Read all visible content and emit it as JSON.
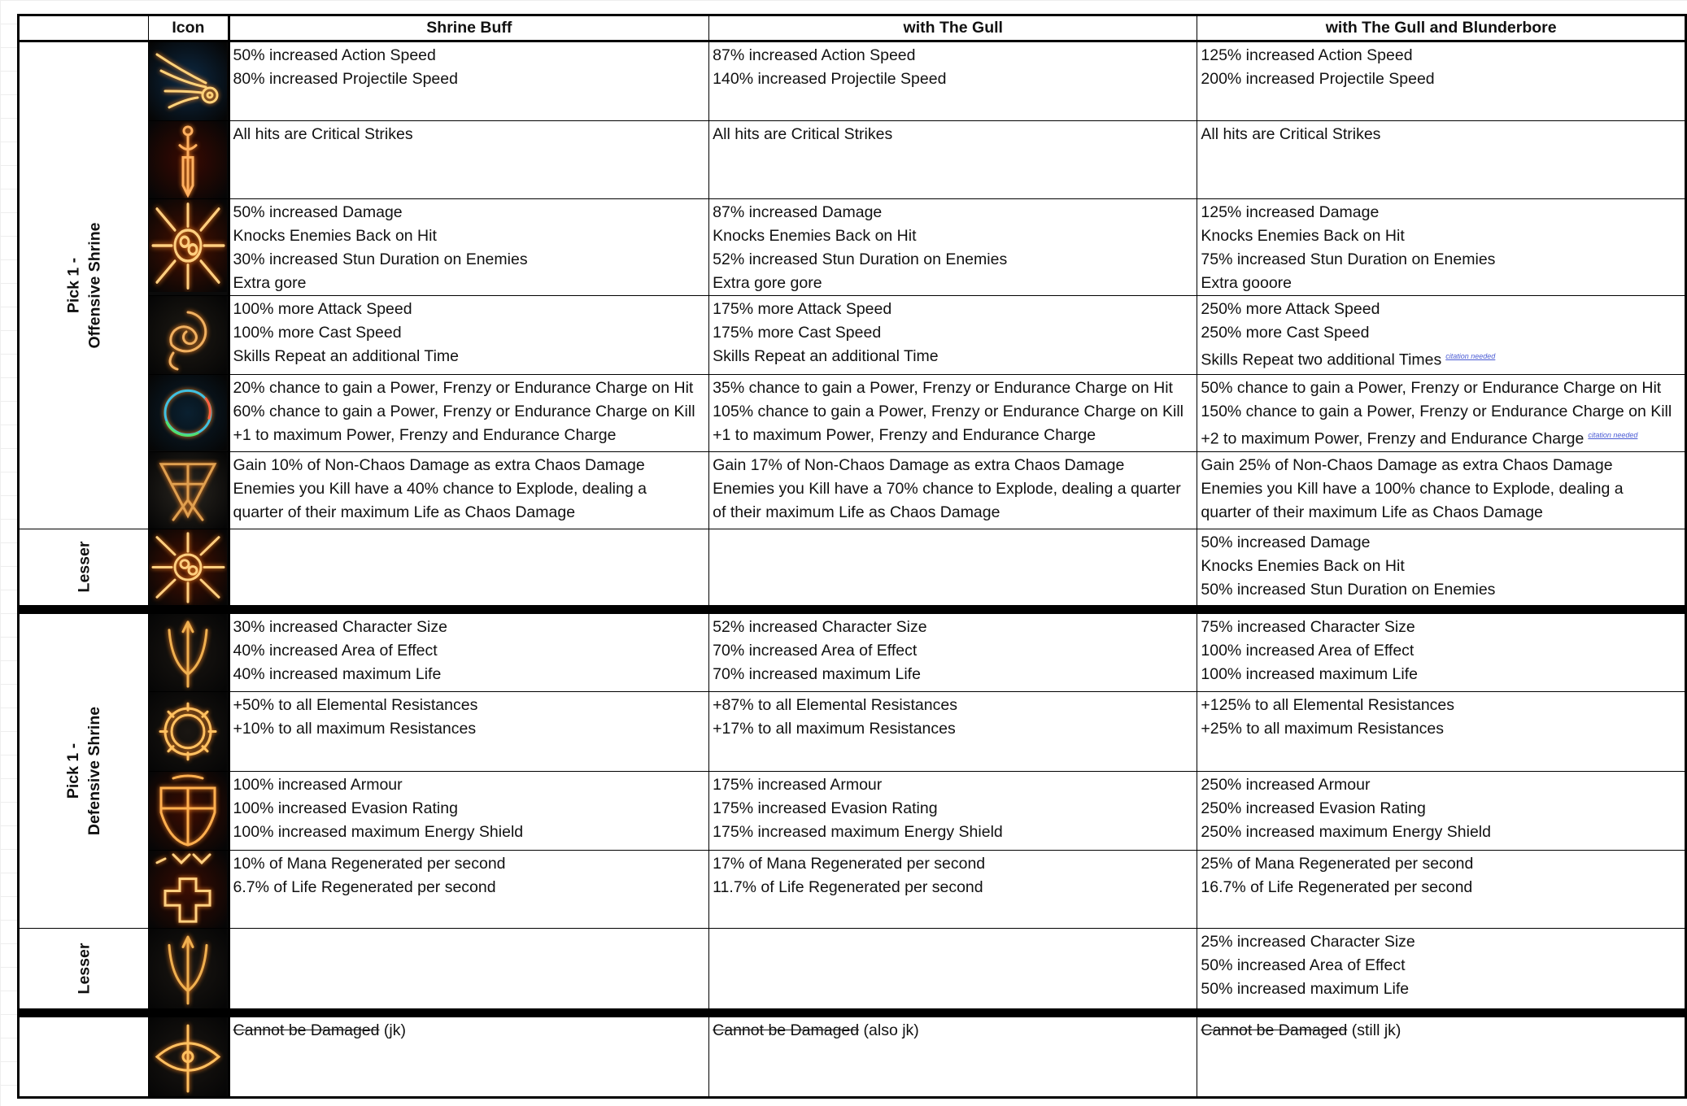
{
  "header": {
    "group": "",
    "icon": "Icon",
    "col1": "Shrine Buff",
    "col2": "with The Gull",
    "col3": "with The Gull and Blunderbore"
  },
  "groups": {
    "offensive": [
      "Pick 1 -",
      "Offensive Shrine"
    ],
    "lesser": "Lesser",
    "defensive": [
      "Pick 1 -",
      "Defensive Shrine"
    ]
  },
  "citation": "citation needed",
  "sections": [
    {
      "group": "offensive",
      "rows": [
        {
          "icon": "wing-shrine-icon",
          "bg": "#0d2a45",
          "glow": "#ffd27a",
          "h": 97,
          "cells": [
            {
              "lines": [
                "50% increased Action Speed",
                "80% increased Projectile Speed"
              ]
            },
            {
              "lines": [
                "87% increased Action Speed",
                "140% increased Projectile Speed"
              ]
            },
            {
              "lines": [
                "125% increased Action Speed",
                "200% increased Projectile Speed"
              ]
            }
          ]
        },
        {
          "icon": "dagger-shrine-icon",
          "bg": "#3a0a02",
          "glow": "#ffb060",
          "h": 96,
          "cells": [
            {
              "lines": [
                "All hits are Critical Strikes"
              ]
            },
            {
              "lines": [
                "All hits are Critical Strikes"
              ]
            },
            {
              "lines": [
                "All hits are Critical Strikes"
              ]
            }
          ]
        },
        {
          "icon": "burst-shrine-icon",
          "bg": "#4a1000",
          "glow": "#ffcf80",
          "h": 115,
          "cells": [
            {
              "lines": [
                "50% increased Damage",
                "Knocks Enemies Back on Hit",
                "30% increased Stun Duration on Enemies",
                "Extra gore"
              ]
            },
            {
              "lines": [
                "87% increased Damage",
                "Knocks Enemies Back on Hit",
                "52% increased Stun Duration on Enemies",
                "Extra gore gore"
              ]
            },
            {
              "lines": [
                "125% increased Damage",
                "Knocks Enemies Back on Hit",
                "75% increased Stun Duration on Enemies",
                "Extra gooore"
              ]
            }
          ]
        },
        {
          "icon": "spiral-shrine-icon",
          "bg": "#1e1a14",
          "glow": "#f0b060",
          "h": 97,
          "cells": [
            {
              "lines": [
                "100% more Attack Speed",
                "100% more Cast Speed",
                "Skills Repeat an additional Time"
              ]
            },
            {
              "lines": [
                "175% more Attack Speed",
                "175% more Cast Speed",
                "Skills Repeat an additional Time"
              ]
            },
            {
              "lines": [
                "250% more Attack Speed",
                "250% more Cast Speed",
                "Skills Repeat two additional Times"
              ],
              "cite_line": 2
            }
          ]
        },
        {
          "icon": "orb-charge-shrine-icon",
          "bg": "#0a2030",
          "glow": "#40d080",
          "h": 94,
          "cells": [
            {
              "lines": [
                "20% chance to gain a Power, Frenzy or Endurance Charge on Hit",
                "60% chance to gain a Power, Frenzy or Endurance Charge on Kill",
                "+1 to maximum Power, Frenzy and Endurance Charge"
              ]
            },
            {
              "lines": [
                "35% chance to gain a Power, Frenzy or Endurance Charge on Hit",
                "105% chance to gain a Power, Frenzy or Endurance Charge on Kill",
                "+1 to maximum Power, Frenzy and Endurance Charge"
              ]
            },
            {
              "lines": [
                "50% chance to gain a Power, Frenzy or Endurance Charge on Hit",
                "150% chance to gain a Power, Frenzy or Endurance Charge on Kill",
                "+2 to maximum Power, Frenzy and Endurance Charge"
              ],
              "cite_line": 2
            }
          ]
        },
        {
          "icon": "chaos-sigil-shrine-icon",
          "bg": "#2a2620",
          "glow": "#e0a050",
          "h": 95,
          "cells": [
            {
              "lines": [
                "Gain 10% of Non-Chaos Damage as extra Chaos Damage",
                "Enemies you Kill have a 40% chance to Explode, dealing a",
                "quarter of their maximum Life as Chaos Damage"
              ]
            },
            {
              "lines": [
                "Gain 17% of Non-Chaos Damage as extra Chaos Damage",
                "Enemies you Kill have a 70% chance to Explode, dealing a quarter",
                "of their maximum Life as Chaos Damage"
              ]
            },
            {
              "lines": [
                "Gain 25% of Non-Chaos Damage as extra Chaos Damage",
                "Enemies you Kill have a 100% chance to Explode, dealing a",
                "quarter of their maximum Life as Chaos Damage"
              ]
            }
          ]
        }
      ]
    },
    {
      "group": "lesser",
      "rows": [
        {
          "icon": "burst-shrine-icon",
          "bg": "#4a1000",
          "glow": "#ffcf80",
          "h": 94,
          "cells": [
            {
              "lines": []
            },
            {
              "lines": []
            },
            {
              "lines": [
                "50% increased Damage",
                "Knocks Enemies Back on Hit",
                "50% increased Stun Duration on Enemies"
              ]
            }
          ]
        }
      ]
    },
    {
      "group": "defensive",
      "rows": [
        {
          "icon": "trident-shrine-icon",
          "bg": "#1a1612",
          "glow": "#f0b050",
          "h": 96,
          "cells": [
            {
              "lines": [
                "30% increased Character Size",
                "40% increased Area of Effect",
                "40% increased maximum Life"
              ]
            },
            {
              "lines": [
                "52% increased Character Size",
                "70% increased Area of Effect",
                "70% increased maximum Life"
              ]
            },
            {
              "lines": [
                "75% increased Character Size",
                "100% increased Area of Effect",
                "100% increased maximum Life"
              ]
            }
          ]
        },
        {
          "icon": "ring-shrine-icon",
          "bg": "#1a1612",
          "glow": "#ffc060",
          "h": 98,
          "cells": [
            {
              "lines": [
                "+50% to all Elemental Resistances",
                "+10% to all maximum Resistances"
              ]
            },
            {
              "lines": [
                "+87% to all Elemental Resistances",
                "+17% to all maximum Resistances"
              ]
            },
            {
              "lines": [
                "+125% to all Elemental Resistances",
                "+25% to all maximum Resistances"
              ]
            }
          ]
        },
        {
          "icon": "shield-shrine-icon",
          "bg": "#3a0c02",
          "glow": "#ffb050",
          "h": 97,
          "cells": [
            {
              "lines": [
                "100% increased Armour",
                "100% increased Evasion Rating",
                "100% increased maximum Energy Shield"
              ]
            },
            {
              "lines": [
                "175% increased Armour",
                "175% increased Evasion Rating",
                "175% increased maximum Energy Shield"
              ]
            },
            {
              "lines": [
                "250% increased Armour",
                "250% increased Evasion Rating",
                "250% increased maximum Energy Shield"
              ]
            }
          ]
        },
        {
          "icon": "cross-regen-shrine-icon",
          "bg": "#3a0c02",
          "glow": "#ffd080",
          "h": 96,
          "cells": [
            {
              "lines": [
                "10% of Mana Regenerated per second",
                "6.7% of Life Regenerated per second"
              ]
            },
            {
              "lines": [
                "17% of Mana Regenerated per second",
                "11.7% of Life Regenerated per second"
              ]
            },
            {
              "lines": [
                "25% of Mana Regenerated per second",
                "16.7% of Life Regenerated per second"
              ]
            }
          ]
        }
      ]
    },
    {
      "group": "lesser",
      "rows": [
        {
          "icon": "trident-shrine-icon",
          "bg": "#1a1612",
          "glow": "#f0b050",
          "h": 99,
          "cells": [
            {
              "lines": []
            },
            {
              "lines": []
            },
            {
              "lines": [
                "25% increased Character Size",
                "50% increased Area of Effect",
                "50% increased maximum Life"
              ]
            }
          ]
        }
      ]
    },
    {
      "group": "",
      "rows": [
        {
          "icon": "eye-shrine-icon",
          "bg": "#1a1612",
          "glow": "#ffc060",
          "h": 98,
          "cells": [
            {
              "strike": "Cannot be Damaged",
              "after": " (jk)"
            },
            {
              "strike": "Cannot be Damaged",
              "after": " (also jk)"
            },
            {
              "strike": "Cannot be Damaged",
              "after": " (still jk)"
            }
          ]
        }
      ]
    }
  ]
}
